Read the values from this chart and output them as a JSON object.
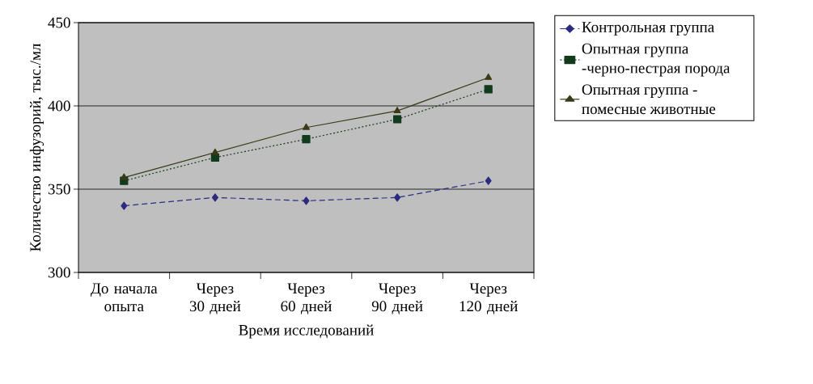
{
  "chart_data": {
    "type": "line",
    "xlabel": "Время исследований",
    "ylabel": "Количество инфузорий, тыс./мл",
    "categories": [
      "До начала опыта",
      "Через 30 дней",
      "Через 60 дней",
      "Через 90 дней",
      "Через 120 дней"
    ],
    "series": [
      {
        "name": "Контрольная группа",
        "color": "#2b2b80",
        "marker": "diamond",
        "line_style": "dashed",
        "values": [
          340,
          345,
          343,
          345,
          355
        ]
      },
      {
        "name": "Опытная группа -черно-пестрая порода",
        "color": "#123a1c",
        "marker": "square",
        "line_style": "dotted",
        "values": [
          355,
          369,
          380,
          392,
          410
        ]
      },
      {
        "name": "Опытная группа - помесные животные",
        "color": "#3a3a18",
        "marker": "triangle",
        "line_style": "solid",
        "values": [
          357,
          372,
          387,
          397,
          417
        ]
      }
    ],
    "ylim": [
      300,
      450
    ],
    "yticks": [
      300,
      350,
      400,
      450
    ],
    "grid": "y",
    "legend": "right"
  }
}
